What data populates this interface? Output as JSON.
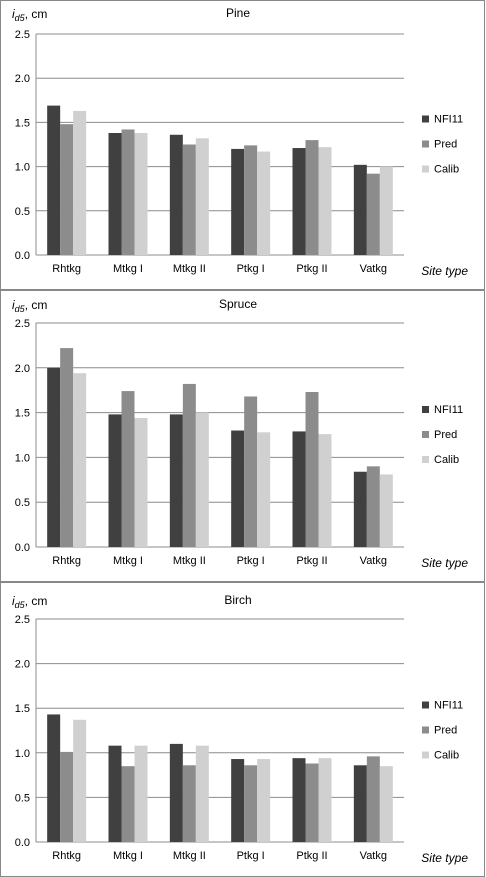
{
  "chart_data": [
    {
      "type": "bar",
      "title": "Pine",
      "ylabel_main": "i",
      "ylabel_sub": "d5",
      "ylabel_unit": ", cm",
      "xlabel": "Site type",
      "ylim": [
        0,
        2.5
      ],
      "yticks": [
        "0.0",
        "0.5",
        "1.0",
        "1.5",
        "2.0",
        "2.5"
      ],
      "legend_position": "right",
      "categories": [
        "Rhtkg",
        "Mtkg I",
        "Mtkg II",
        "Ptkg I",
        "Ptkg II",
        "Vatkg"
      ],
      "series": [
        {
          "name": "NFI11",
          "color": "#404040",
          "values": [
            1.69,
            1.38,
            1.36,
            1.2,
            1.21,
            1.02
          ]
        },
        {
          "name": "Pred",
          "color": "#8c8c8c",
          "values": [
            1.48,
            1.42,
            1.25,
            1.24,
            1.3,
            0.92
          ]
        },
        {
          "name": "Calib",
          "color": "#d0d0d0",
          "values": [
            1.63,
            1.38,
            1.32,
            1.17,
            1.22,
            1.0
          ]
        }
      ]
    },
    {
      "type": "bar",
      "title": "Spruce",
      "ylabel_main": "i",
      "ylabel_sub": "d5",
      "ylabel_unit": ", cm",
      "xlabel": "Site type",
      "ylim": [
        0,
        2.5
      ],
      "yticks": [
        "0.0",
        "0.5",
        "1.0",
        "1.5",
        "2.0",
        "2.5"
      ],
      "legend_position": "right",
      "categories": [
        "Rhtkg",
        "Mtkg I",
        "Mtkg II",
        "Ptkg I",
        "Ptkg II",
        "Vatkg"
      ],
      "series": [
        {
          "name": "NFI11",
          "color": "#404040",
          "values": [
            2.0,
            1.48,
            1.48,
            1.3,
            1.29,
            0.84
          ]
        },
        {
          "name": "Pred",
          "color": "#8c8c8c",
          "values": [
            2.22,
            1.74,
            1.82,
            1.68,
            1.73,
            0.9
          ]
        },
        {
          "name": "Calib",
          "color": "#d0d0d0",
          "values": [
            1.94,
            1.44,
            1.5,
            1.28,
            1.26,
            0.81
          ]
        }
      ]
    },
    {
      "type": "bar",
      "title": "Birch",
      "ylabel_main": "i",
      "ylabel_sub": "d5",
      "ylabel_unit": ", cm",
      "xlabel": "Site type",
      "ylim": [
        0,
        2.5
      ],
      "yticks": [
        "0.0",
        "0.5",
        "1.0",
        "1.5",
        "2.0",
        "2.5"
      ],
      "legend_position": "right",
      "categories": [
        "Rhtkg",
        "Mtkg I",
        "Mtkg II",
        "Ptkg I",
        "Ptkg II",
        "Vatkg"
      ],
      "series": [
        {
          "name": "NFI11",
          "color": "#404040",
          "values": [
            1.43,
            1.08,
            1.1,
            0.93,
            0.94,
            0.86
          ]
        },
        {
          "name": "Pred",
          "color": "#8c8c8c",
          "values": [
            1.01,
            0.85,
            0.86,
            0.86,
            0.88,
            0.96
          ]
        },
        {
          "name": "Calib",
          "color": "#d0d0d0",
          "values": [
            1.37,
            1.08,
            1.08,
            0.93,
            0.94,
            0.85
          ]
        }
      ]
    }
  ]
}
